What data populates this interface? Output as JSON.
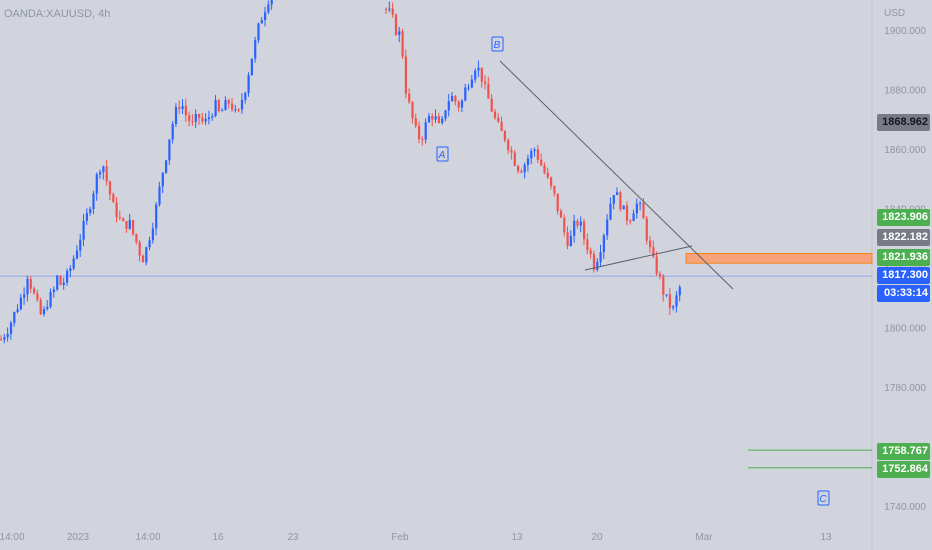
{
  "symbol": "OANDA:XAUUSD, 4h",
  "currency": "USD",
  "colors": {
    "background": "#d1d4dc",
    "up": "#2962ff",
    "down": "#ef5350",
    "wick_neutral": "#26a69a",
    "zone": "#f7a27a",
    "target": "#4caf50",
    "current_price": "#2962ff",
    "axis_text": "#8f96a3"
  },
  "wave_labels": [
    "A",
    "B",
    "C"
  ],
  "price_tags": [
    {
      "value": "1868.962",
      "bg": "#787b86",
      "fg": "#131722"
    },
    {
      "value": "1823.906",
      "bg": "#4caf50",
      "fg": "#ffffff"
    },
    {
      "value": "1822.182",
      "bg": "#787b86",
      "fg": "#ffffff"
    },
    {
      "value": "1821.936",
      "bg": "#4caf50",
      "fg": "#ffffff"
    },
    {
      "value": "1817.300",
      "bg": "#2962ff",
      "fg": "#ffffff"
    },
    {
      "value": "03:33:14",
      "bg": "#2962ff",
      "fg": "#ffffff"
    },
    {
      "value": "1758.767",
      "bg": "#4caf50",
      "fg": "#ffffff"
    },
    {
      "value": "1752.864",
      "bg": "#4caf50",
      "fg": "#ffffff"
    }
  ],
  "chart_data": {
    "type": "candlestick",
    "title": "OANDA:XAUUSD, 4h",
    "y_unit": "USD",
    "ylim": [
      1733,
      1912
    ],
    "y_ticks": [
      "1900.000",
      "1880.000",
      "1860.000",
      "1840.000",
      "1820.000",
      "1800.000",
      "1780.000",
      "1760.000",
      "1740.000"
    ],
    "x_ticks": [
      "14:00",
      "2023",
      "14:00",
      "16",
      "23",
      "Feb",
      "13",
      "20",
      "Mar",
      "13"
    ],
    "current_price": 1817.3,
    "countdown": "03:33:14",
    "resistance_zone": [
      1821.936,
      1823.906
    ],
    "targets": [
      1758.767,
      1752.864
    ],
    "wave_points": [
      {
        "label": "A",
        "price": 1863
      },
      {
        "label": "B",
        "price": 1890
      },
      {
        "label": "C",
        "price": 1743
      }
    ],
    "price_path": [
      1796,
      1798,
      1800,
      1803,
      1806,
      1809,
      1812,
      1818,
      1814,
      1810,
      1806,
      1803,
      1808,
      1810,
      1812,
      1817,
      1814,
      1816,
      1818,
      1822,
      1826,
      1830,
      1834,
      1838,
      1843,
      1848,
      1853,
      1856,
      1850,
      1845,
      1840,
      1838,
      1835,
      1834,
      1836,
      1832,
      1829,
      1825,
      1823,
      1828,
      1833,
      1838,
      1845,
      1852,
      1858,
      1865,
      1870,
      1874,
      1876,
      1872,
      1870,
      1868,
      1870,
      1871,
      1868,
      1870,
      1872,
      1875,
      1872,
      1873,
      1875,
      1876,
      1873,
      1870,
      1876,
      1880,
      1886,
      1892,
      1897,
      1903,
      1906,
      1910,
      1912,
      1914
    ]
  }
}
